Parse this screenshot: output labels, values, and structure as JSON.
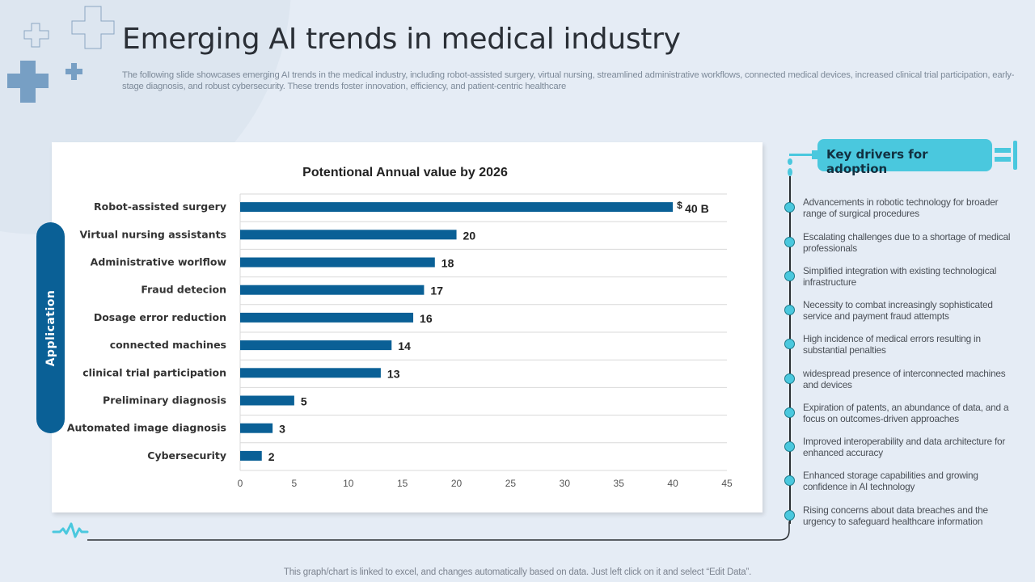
{
  "header": {
    "title": "Emerging AI trends in medical industry",
    "subtitle": "The following slide showcases emerging AI trends in the medical industry, including robot-assisted surgery, virtual nursing, streamlined administrative workflows, connected medical devices, increased clinical trial participation, early-stage diagnosis, and robust cybersecurity. These trends foster innovation, efficiency,  and patient-centric healthcare"
  },
  "side_label": "Application",
  "colors": {
    "bar": "#0a6096",
    "accent": "#4ac8de",
    "pill": "#0a6096",
    "background": "#e5ecf5"
  },
  "chart_data": {
    "type": "bar",
    "orientation": "horizontal",
    "title": "Potentional Annual value by  2026",
    "xlabel": "",
    "ylabel": "",
    "xlim": [
      0,
      45
    ],
    "ticks": [
      0,
      5,
      10,
      15,
      20,
      25,
      30,
      35,
      40,
      45
    ],
    "grid": true,
    "categories": [
      "Robot-assisted surgery",
      "Virtual nursing assistants",
      "Administrative worlflow",
      "Fraud detecion",
      "Dosage error reduction",
      "connected machines",
      "clinical trial participation",
      "Preliminary diagnosis",
      "Automated image diagnosis",
      "Cybersecurity"
    ],
    "values": [
      40,
      20,
      18,
      17,
      16,
      14,
      13,
      5,
      3,
      2
    ],
    "data_labels": [
      "40 B",
      "20",
      "18",
      "17",
      "16",
      "14",
      "13",
      "5",
      "3",
      "2"
    ],
    "first_label_prefix": "$",
    "unit": "$ B"
  },
  "drivers": {
    "title": "Key drivers for adoption",
    "items": [
      "Advancements in robotic technology for broader range of surgical procedures",
      "Escalating challenges due to a shortage of medical professionals",
      "Simplified integration with existing technological infrastructure",
      "Necessity to combat increasingly sophisticated service and payment fraud attempts",
      "High incidence of medical errors resulting in substantial penalties",
      "widespread presence of interconnected machines and devices",
      "Expiration of patents, an abundance of data, and a focus on outcomes-driven approaches",
      "Improved interoperability and data architecture for enhanced accuracy",
      "Enhanced storage capabilities and growing confidence in AI  technology",
      "Rising concerns about data breaches and the urgency to safeguard healthcare information"
    ]
  },
  "footer": "This graph/chart is linked to excel,  and changes automatically based on data. Just left click on it and select “Edit Data”."
}
